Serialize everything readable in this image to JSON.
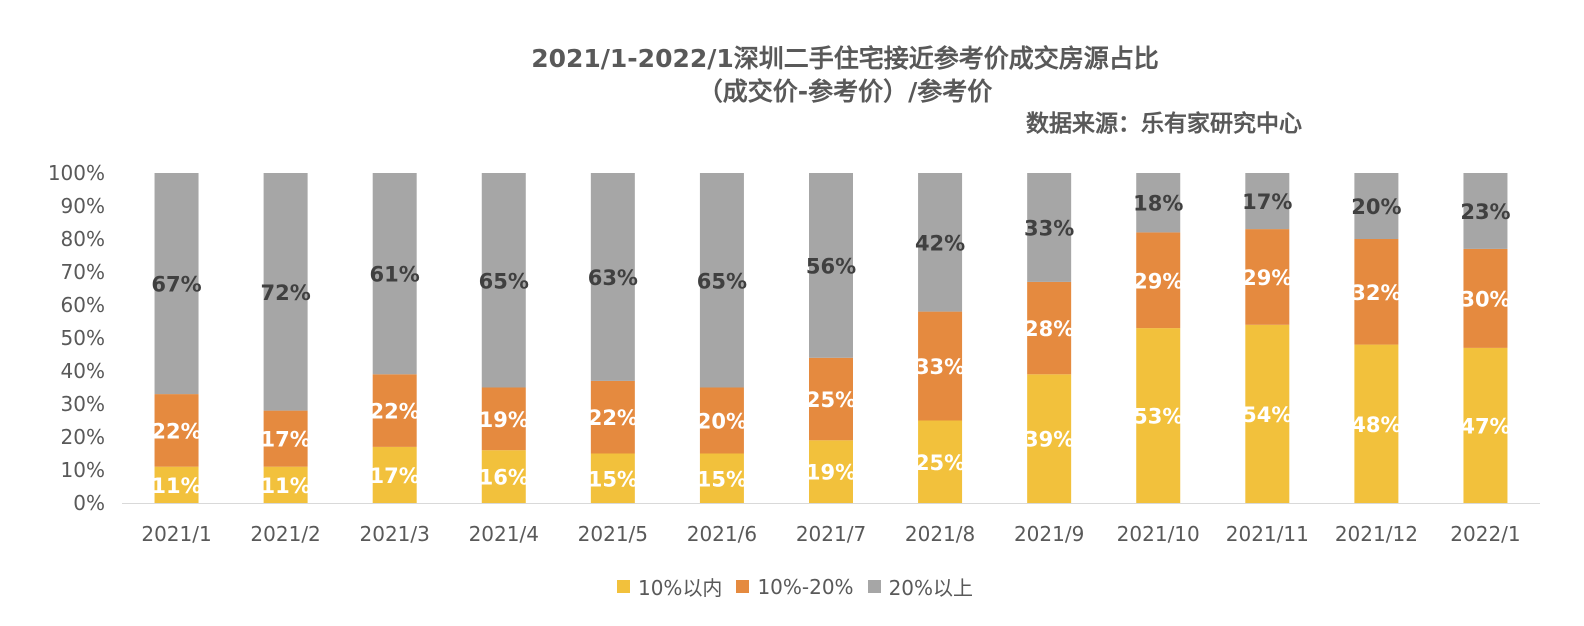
{
  "chart_data": {
    "type": "bar",
    "stacked": true,
    "title": "2021/1-2022/1深圳二手住宅接近参考价成交房源占比",
    "subtitle": "（成交价-参考价）/参考价",
    "source": "数据来源：乐有家研究中心",
    "categories": [
      "2021/1",
      "2021/2",
      "2021/3",
      "2021/4",
      "2021/5",
      "2021/6",
      "2021/7",
      "2021/8",
      "2021/9",
      "2021/10",
      "2021/11",
      "2021/12",
      "2022/1"
    ],
    "yticks": [
      "0%",
      "10%",
      "20%",
      "30%",
      "40%",
      "50%",
      "60%",
      "70%",
      "80%",
      "90%",
      "100%"
    ],
    "ylim": [
      0,
      100
    ],
    "legend_position": "bottom",
    "grid": false,
    "series": [
      {
        "name": "10%以内",
        "color": "#F2C13C",
        "label_color": "#ffffff",
        "values": [
          11,
          11,
          17,
          16,
          15,
          15,
          19,
          25,
          39,
          53,
          54,
          48,
          47
        ],
        "labels": [
          "11%",
          "11%",
          "17%",
          "16%",
          "15%",
          "15%",
          "19%",
          "25%",
          "39%",
          "53%",
          "54%",
          "48%",
          "47%"
        ]
      },
      {
        "name": "10%-20%",
        "color": "#E58A3F",
        "label_color": "#ffffff",
        "values": [
          22,
          17,
          22,
          19,
          22,
          20,
          25,
          33,
          28,
          29,
          29,
          32,
          30
        ],
        "labels": [
          "22%",
          "17%",
          "22%",
          "19%",
          "22%",
          "20%",
          "25%",
          "33%",
          "28%",
          "29%",
          "29%",
          "32%",
          "30%"
        ]
      },
      {
        "name": "20%以上",
        "color": "#A6A6A6",
        "label_color": "#404040",
        "values": [
          67,
          72,
          61,
          65,
          63,
          65,
          56,
          42,
          33,
          18,
          17,
          20,
          23
        ],
        "labels": [
          "67%",
          "72%",
          "61%",
          "65%",
          "63%",
          "65%",
          "56%",
          "42%",
          "33%",
          "18%",
          "17%",
          "20%",
          "23%"
        ]
      }
    ]
  }
}
